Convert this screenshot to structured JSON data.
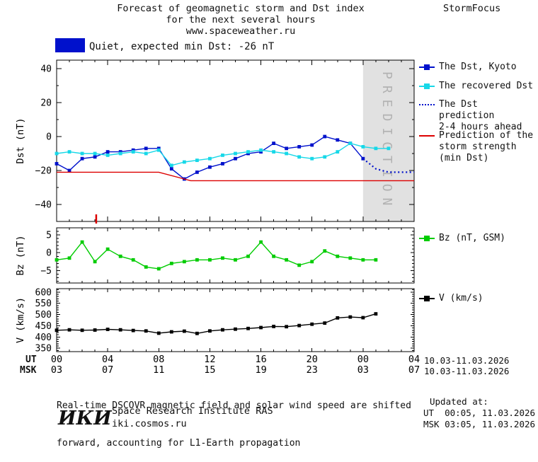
{
  "header": {
    "title_line1": "Forecast of geomagnetic storm and Dst index",
    "title_line2": "for the next several hours",
    "title_line3": "www.spaceweather.ru",
    "brand": "StormFocus"
  },
  "status": {
    "label": "Quiet, expected min Dst: -26 nT",
    "swatch_color": "#0011cc"
  },
  "legend": {
    "dst_kyoto": "The Dst, Kyoto",
    "recovered": "The recovered Dst",
    "prediction_line1": "The Dst prediction",
    "prediction_line2": "2-4 hours ahead",
    "storm_line1": "Prediction of the",
    "storm_line2": "storm strength",
    "storm_line3": "(min Dst)",
    "bz": "Bz (nT, GSM)",
    "v": "V (km/s)"
  },
  "axis": {
    "ut_label": "UT",
    "msk_label": "MSK",
    "ut_hours": [
      "00",
      "04",
      "08",
      "12",
      "16",
      "20",
      "00",
      "04"
    ],
    "msk_hours": [
      "03",
      "07",
      "11",
      "15",
      "19",
      "23",
      "03",
      "07"
    ],
    "ut_date": "10.03-11.03.2026",
    "msk_date": "10.03-11.03.2026"
  },
  "footer": {
    "note_line1": "Real-time DSCOVR magnetic field and solar wind speed are shifted",
    "note_line2": "forward, accounting for L1-Earth propagation",
    "updated_label": "Updated at:",
    "updated_ut": "UT  00:05, 11.03.2026",
    "updated_msk": "MSK 03:05, 11.03.2026",
    "logo": "ИКИ",
    "institute": "Space Research Institute RAS",
    "site": "iki.cosmos.ru"
  },
  "chart_data": [
    {
      "type": "line",
      "panel": "dst",
      "ylabel": "Dst (nT)",
      "ylim": [
        -50,
        45
      ],
      "yticks": [
        -40,
        -20,
        0,
        20,
        40
      ],
      "xlim": [
        0,
        28
      ],
      "xticks_hours": [
        0,
        4,
        8,
        12,
        16,
        20,
        24,
        28
      ],
      "prediction_band": {
        "start": 24,
        "end": 28,
        "label": "PREDICTION",
        "color": "#e1e1e1",
        "label_color": "#b2b2b2"
      },
      "event_tick_x": 3.1,
      "series": [
        {
          "id": "dst-kyoto",
          "name": "The Dst, Kyoto",
          "color": "#0011cc",
          "marker": "square",
          "x": [
            0,
            1,
            2,
            3,
            4,
            5,
            6,
            7,
            8,
            9,
            10,
            11,
            12,
            13,
            14,
            15,
            16,
            17,
            18,
            19,
            20,
            21,
            22,
            23,
            24
          ],
          "values": [
            -16,
            -20,
            -13,
            -12,
            -9,
            -9,
            -8,
            -7,
            -7,
            -19,
            -25,
            -21,
            -18,
            -16,
            -13,
            -10,
            -9,
            -4,
            -7,
            -6,
            -5,
            0,
            -2,
            -4,
            -13
          ]
        },
        {
          "id": "recovered-dst",
          "name": "The recovered Dst",
          "color": "#17d8e8",
          "marker": "square",
          "x": [
            0,
            1,
            2,
            3,
            4,
            5,
            6,
            7,
            8,
            9,
            10,
            11,
            12,
            13,
            14,
            15,
            16,
            17,
            18,
            19,
            20,
            21,
            22,
            23,
            24,
            25,
            26
          ],
          "values": [
            -10,
            -9,
            -10,
            -10,
            -11,
            -10,
            -9,
            -10,
            -8,
            -17,
            -15,
            -14,
            -13,
            -11,
            -10,
            -9,
            -8,
            -9,
            -10,
            -12,
            -13,
            -12,
            -9,
            -4,
            -6,
            -7,
            -7
          ]
        },
        {
          "id": "dst-prediction",
          "name": "The Dst prediction 2-4 hours ahead",
          "color": "#0011cc",
          "style": "dotted",
          "x": [
            24,
            25,
            26,
            27,
            28
          ],
          "values": [
            -13,
            -19,
            -21,
            -21,
            -21
          ]
        },
        {
          "id": "storm-strength",
          "name": "Prediction of the storm strength (min Dst)",
          "color": "#dd0000",
          "x": [
            0,
            8,
            10.5,
            28
          ],
          "values": [
            -21,
            -21,
            -26,
            -26
          ]
        }
      ]
    },
    {
      "type": "line",
      "panel": "bz",
      "ylabel": "Bz (nT)",
      "ylim": [
        -8.5,
        7
      ],
      "yticks": [
        -5,
        0,
        5
      ],
      "xlim": [
        0,
        28
      ],
      "series": [
        {
          "id": "bz",
          "name": "Bz (nT, GSM)",
          "color": "#00cc00",
          "marker": "square",
          "x": [
            0,
            1,
            2,
            3,
            4,
            5,
            6,
            7,
            8,
            9,
            10,
            11,
            12,
            13,
            14,
            15,
            16,
            17,
            18,
            19,
            20,
            21,
            22,
            23,
            24,
            25
          ],
          "values": [
            -2,
            -1.5,
            3,
            -2.5,
            1,
            -1,
            -2,
            -4,
            -4.5,
            -3,
            -2.5,
            -2,
            -2,
            -1.5,
            -2,
            -1,
            3,
            -1,
            -2,
            -3.5,
            -2.5,
            0.5,
            -1,
            -1.5,
            -2,
            -2
          ]
        }
      ]
    },
    {
      "type": "line",
      "panel": "v",
      "ylabel": "V (km/s)",
      "ylim": [
        335,
        615
      ],
      "yticks": [
        350,
        400,
        450,
        500,
        550,
        600
      ],
      "xlim": [
        0,
        28
      ],
      "series": [
        {
          "id": "v",
          "name": "V (km/s)",
          "color": "#000000",
          "marker": "square",
          "x": [
            0,
            1,
            2,
            3,
            4,
            5,
            6,
            7,
            8,
            9,
            10,
            11,
            12,
            13,
            14,
            15,
            16,
            17,
            18,
            19,
            20,
            21,
            22,
            23,
            24,
            25
          ],
          "values": [
            430,
            432,
            430,
            431,
            434,
            432,
            429,
            427,
            417,
            423,
            426,
            416,
            427,
            432,
            435,
            438,
            442,
            447,
            446,
            451,
            457,
            462,
            485,
            489,
            486,
            503
          ]
        }
      ]
    }
  ]
}
